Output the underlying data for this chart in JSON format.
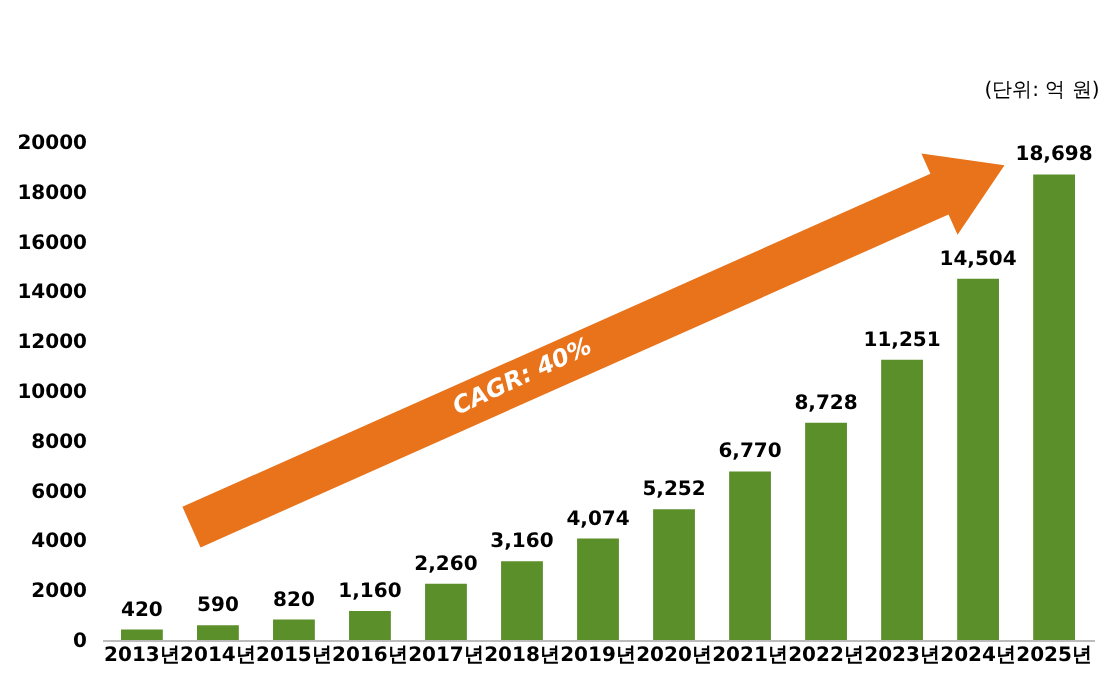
{
  "chart_data": {
    "type": "bar",
    "categories": [
      "2013년",
      "2014년",
      "2015년",
      "2016년",
      "2017년",
      "2018년",
      "2019년",
      "2020년",
      "2021년",
      "2022년",
      "2023년",
      "2024년",
      "2025년"
    ],
    "values": [
      420,
      590,
      820,
      1160,
      2260,
      3160,
      4074,
      5252,
      6770,
      8728,
      11251,
      14504,
      18698
    ],
    "color": "#5b8f2a",
    "ylim": [
      0,
      20000
    ],
    "yticks": [
      0,
      2000,
      4000,
      6000,
      8000,
      10000,
      12000,
      14000,
      16000,
      18000,
      20000
    ],
    "grid": false,
    "value_labels": [
      "420",
      "590",
      "820",
      "1,160",
      "2,260",
      "3,160",
      "4,074",
      "5,252",
      "6,770",
      "8,728",
      "11,251",
      "14,504",
      "18,698"
    ],
    "annotations": [
      "CAGR: 40%",
      "(단위: 억 원)"
    ]
  }
}
